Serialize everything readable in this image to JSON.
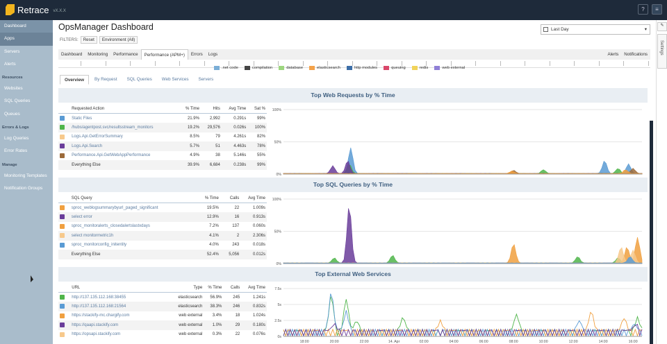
{
  "app": {
    "brand": "Retrace",
    "version": "vX.X.X",
    "help": "?",
    "menu": "≡"
  },
  "sidebar": {
    "items": [
      {
        "label": "Dashboard",
        "kind": "first"
      },
      {
        "label": "Apps",
        "kind": "active"
      },
      {
        "label": "Servers",
        "kind": "item"
      },
      {
        "label": "Alerts",
        "kind": "item"
      },
      {
        "label": "Resources",
        "kind": "head"
      },
      {
        "label": "Websites",
        "kind": "item"
      },
      {
        "label": "SQL Queries",
        "kind": "item"
      },
      {
        "label": "Queues",
        "kind": "item"
      },
      {
        "label": "Errors & Logs",
        "kind": "head"
      },
      {
        "label": "Log Queries",
        "kind": "item"
      },
      {
        "label": "Error Rates",
        "kind": "item"
      },
      {
        "label": "Manage",
        "kind": "head"
      },
      {
        "label": "Monitoring Templates",
        "kind": "item"
      },
      {
        "label": "Notification Groups",
        "kind": "item"
      }
    ]
  },
  "page": {
    "title": "OpsManager Dashboard"
  },
  "filters": {
    "label": "FILTERS:",
    "reset": "Reset",
    "env": "Environment (All)"
  },
  "range": {
    "value": "Last Day",
    "caret": "▾"
  },
  "nav": {
    "tabs": [
      "Dashboard",
      "Monitoring",
      "Performance",
      "Performance (APM+)",
      "Errors",
      "Logs"
    ],
    "selected": 3,
    "right": [
      "Alerts",
      "Notifications"
    ]
  },
  "legend": [
    {
      "label": ".net code",
      "color": "#7aaed6"
    },
    {
      "label": "compilation",
      "color": "#444444"
    },
    {
      "label": "database",
      "color": "#9dd67f"
    },
    {
      "label": "elasticsearch",
      "color": "#f4a24a"
    },
    {
      "label": "http modules",
      "color": "#3c6ea8"
    },
    {
      "label": "queuing",
      "color": "#d9476a"
    },
    {
      "label": "redis",
      "color": "#f1d35a"
    },
    {
      "label": "web external",
      "color": "#8f7fd6"
    }
  ],
  "subtabs": {
    "items": [
      "Overview",
      "By Request",
      "SQL Queries",
      "Web Services",
      "Servers"
    ],
    "selected": 0
  },
  "webreq": {
    "title": "Top Web Requests by % Time",
    "headers": [
      "Requested Action",
      "% Time",
      "Hits",
      "Avg Time",
      "Sat %"
    ],
    "rows": [
      {
        "c": "#5a9bd4",
        "cells": [
          "Static Files",
          "21.9%",
          "2,992",
          "0.291s",
          "99%"
        ]
      },
      {
        "c": "#4fb54a",
        "cells": [
          "/hubs/agentpost.svc/resultsstream_monitors",
          "19.2%",
          "29,576",
          "0.026s",
          "100%"
        ]
      },
      {
        "c": "#f7c98c",
        "cells": [
          "Logs.Api.GetErrorSummary",
          "8.5%",
          "79",
          "4.261s",
          "82%"
        ]
      },
      {
        "c": "#6a3d9a",
        "cells": [
          "Logs.Api.Search",
          "5.7%",
          "51",
          "4.463s",
          "78%"
        ]
      },
      {
        "c": "#9c6a3a",
        "cells": [
          "Performance.Api.GetWebAppPerformance",
          "4.9%",
          "38",
          "5.146s",
          "55%"
        ]
      },
      {
        "c": "",
        "cells": [
          "Everything Else",
          "39.9%",
          "6,684",
          "0.238s",
          "99%"
        ]
      }
    ]
  },
  "sql": {
    "title": "Top SQL Queries by % Time",
    "headers": [
      "SQL Query",
      "% Time",
      "Calls",
      "Avg Time"
    ],
    "rows": [
      {
        "c": "#f0a040",
        "cells": [
          "sproc_weblogsummarybyurl_paged_significant",
          "19.5%",
          "22",
          "1.009s"
        ]
      },
      {
        "c": "#6a3d9a",
        "cells": [
          "select error",
          "12.9%",
          "16",
          "0.913s"
        ]
      },
      {
        "c": "#f0a040",
        "cells": [
          "sproc_monitoralerts_closedalertslastxdays",
          "7.2%",
          "137",
          "0.060s"
        ]
      },
      {
        "c": "#f7c98c",
        "cells": [
          "select monitormetric1h",
          "4.1%",
          "2",
          "2.306s"
        ]
      },
      {
        "c": "#5a9bd4",
        "cells": [
          "sproc_monitorconfig_initentity",
          "4.0%",
          "243",
          "0.018s"
        ]
      },
      {
        "c": "",
        "cells": [
          "Everything Else",
          "52.4%",
          "5,056",
          "0.012s"
        ]
      }
    ]
  },
  "ext": {
    "title": "Top External Web Services",
    "headers": [
      "URL",
      "Type",
      "% Time",
      "Calls",
      "Avg Time"
    ],
    "rows": [
      {
        "c": "#4fb54a",
        "cells": [
          "http://137.135.112.168:38455",
          "elasticsearch",
          "56.9%",
          "245",
          "1.241s"
        ]
      },
      {
        "c": "#5a9bd4",
        "cells": [
          "http://137.135.112.168:21564",
          "elasticsearch",
          "38.3%",
          "246",
          "0.832s"
        ]
      },
      {
        "c": "#f0a040",
        "cells": [
          "https://stackify-mc.chargify.com",
          "web external",
          "3.4%",
          "18",
          "1.024s"
        ]
      },
      {
        "c": "#6a3d9a",
        "cells": [
          "https://qaapi.stackify.com",
          "web external",
          "1.0%",
          "29",
          "0.180s"
        ]
      },
      {
        "c": "#f7c98c",
        "cells": [
          "https://opsapi.stackify.com",
          "web external",
          "0.3%",
          "22",
          "0.076s"
        ]
      }
    ]
  },
  "chart_data": [
    {
      "type": "area",
      "title": "Top Web Requests by % Time",
      "x": [
        "18:00",
        "20:00",
        "22:00",
        "14. Apr",
        "02:00",
        "04:00",
        "06:00",
        "08:00",
        "10:00",
        "12:00",
        "14:00",
        "16:00"
      ],
      "ylim": [
        0,
        100
      ],
      "yticks": [
        "100%",
        "50%",
        "0%"
      ],
      "series": [
        {
          "color": "#5a9bd4",
          "peaks": [
            [
              21.1,
              40
            ],
            [
              14.1,
              20
            ],
            [
              15.7,
              15
            ]
          ]
        },
        {
          "color": "#4fb54a",
          "peaks": [
            [
              21.0,
              15
            ],
            [
              15.0,
              8
            ],
            [
              10.0,
              6
            ]
          ]
        },
        {
          "color": "#6a3d9a",
          "peaks": [
            [
              19.9,
              12
            ],
            [
              20.9,
              20
            ]
          ]
        },
        {
          "color": "#9c6a3a",
          "peaks": [
            [
              8.0,
              5
            ],
            [
              16.0,
              8
            ]
          ]
        },
        {
          "color": "#f0a040",
          "peaks": [
            [
              15.5,
              6
            ],
            [
              7.9,
              4
            ]
          ]
        }
      ]
    },
    {
      "type": "area",
      "title": "Top SQL Queries by % Time",
      "x": [
        "18:00",
        "20:00",
        "22:00",
        "14. Apr",
        "02:00",
        "04:00",
        "06:00",
        "08:00",
        "10:00",
        "12:00",
        "14:00",
        "16:00"
      ],
      "ylim": [
        0,
        100
      ],
      "yticks": [
        "100%",
        "50%",
        "0%"
      ],
      "series": [
        {
          "color": "#4fb54a",
          "peaks": [
            [
              20.0,
              8
            ],
            [
              23.9,
              12
            ],
            [
              12.3,
              10
            ],
            [
              15.0,
              8
            ]
          ]
        },
        {
          "color": "#6a3d9a",
          "peaks": [
            [
              21.0,
              90
            ]
          ]
        },
        {
          "color": "#f0a040",
          "peaks": [
            [
              8.0,
              30
            ],
            [
              15.6,
              25
            ],
            [
              16.3,
              40
            ]
          ]
        },
        {
          "color": "#f7c98c",
          "peaks": [
            [
              15.2,
              25
            ],
            [
              16.0,
              20
            ]
          ]
        },
        {
          "color": "#5a9bd4",
          "peaks": [
            [
              15.8,
              10
            ]
          ]
        }
      ]
    },
    {
      "type": "line",
      "title": "Top External Web Services",
      "x": [
        "18:00",
        "20:00",
        "22:00",
        "14. Apr",
        "02:00",
        "04:00",
        "06:00",
        "08:00",
        "10:00",
        "12:00",
        "14:00",
        "16:00"
      ],
      "ylim": [
        0,
        7.5
      ],
      "yticks": [
        "7.5s",
        "5s",
        "2.5s",
        "0s"
      ],
      "series": [
        {
          "color": "#4fb54a",
          "peaks": [
            [
              19.8,
              5.5
            ],
            [
              20.8,
              5.0
            ],
            [
              21.5,
              1.5
            ],
            [
              0.6,
              2.0
            ],
            [
              8.2,
              2.5
            ],
            [
              16.3,
              2.0
            ]
          ]
        },
        {
          "color": "#5a9bd4",
          "peaks": [
            [
              19.8,
              6.0
            ],
            [
              20.8,
              3.0
            ],
            [
              12.4,
              1.5
            ],
            [
              16.1,
              1.0
            ]
          ]
        },
        {
          "color": "#f0a040",
          "peaks": [
            [
              3.1,
              1.5
            ],
            [
              13.2,
              3.0
            ],
            [
              15.4,
              2.0
            ]
          ]
        },
        {
          "color": "#6a3d9a",
          "peaks": [
            [
              20.0,
              1.0
            ],
            [
              16.2,
              1.0
            ]
          ]
        }
      ]
    }
  ]
}
